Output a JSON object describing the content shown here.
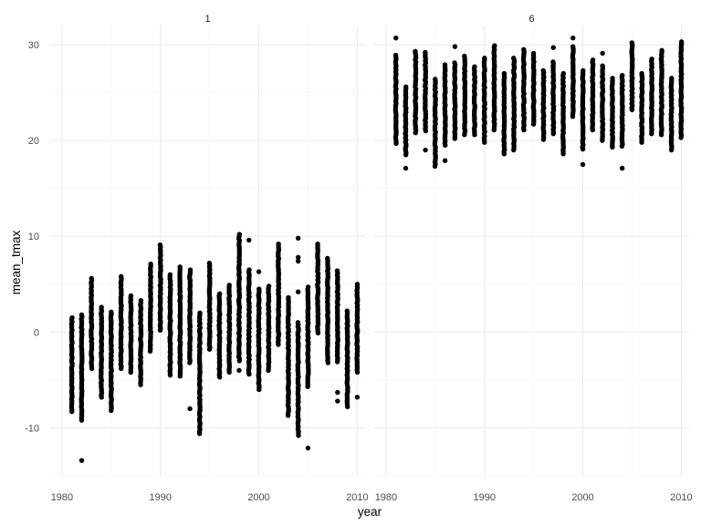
{
  "chart_data": {
    "type": "scatter",
    "facet_var": "month",
    "xlabel": "year",
    "ylabel": "mean_tmax",
    "xlim": [
      1980,
      2010
    ],
    "ylim": [
      -15,
      32
    ],
    "x_ticks": [
      1980,
      1990,
      2000,
      2010
    ],
    "x_tick_labels": [
      "1980",
      "1990",
      "2000",
      "2010"
    ],
    "y_ticks": [
      -10,
      0,
      10,
      20,
      30
    ],
    "y_tick_labels": [
      "-10",
      "0",
      "10",
      "20",
      "30"
    ],
    "grid": true,
    "legend": "none",
    "point_color": "#000000",
    "facets": [
      {
        "label": "1",
        "columns": [
          {
            "year": 1981,
            "min": -8.3,
            "max": 1.5,
            "outliers": []
          },
          {
            "year": 1982,
            "min": -9.2,
            "max": 1.8,
            "outliers": [
              -13.4
            ]
          },
          {
            "year": 1983,
            "min": -3.8,
            "max": 5.6,
            "outliers": []
          },
          {
            "year": 1984,
            "min": -6.8,
            "max": 2.6,
            "outliers": []
          },
          {
            "year": 1985,
            "min": -8.2,
            "max": 2.1,
            "outliers": []
          },
          {
            "year": 1986,
            "min": -3.8,
            "max": 5.8,
            "outliers": []
          },
          {
            "year": 1987,
            "min": -4.2,
            "max": 3.8,
            "outliers": []
          },
          {
            "year": 1988,
            "min": -5.5,
            "max": 3.3,
            "outliers": []
          },
          {
            "year": 1989,
            "min": -2.0,
            "max": 7.1,
            "outliers": []
          },
          {
            "year": 1990,
            "min": 0.2,
            "max": 9.1,
            "outliers": []
          },
          {
            "year": 1991,
            "min": -4.5,
            "max": 6.0,
            "outliers": []
          },
          {
            "year": 1992,
            "min": -4.6,
            "max": 6.8,
            "outliers": []
          },
          {
            "year": 1993,
            "min": -3.2,
            "max": 6.5,
            "outliers": [
              -8.0
            ]
          },
          {
            "year": 1994,
            "min": -10.6,
            "max": 2.0,
            "outliers": []
          },
          {
            "year": 1995,
            "min": -1.8,
            "max": 7.2,
            "outliers": []
          },
          {
            "year": 1996,
            "min": -4.7,
            "max": 4.0,
            "outliers": []
          },
          {
            "year": 1997,
            "min": -4.2,
            "max": 4.9,
            "outliers": []
          },
          {
            "year": 1998,
            "min": -3.0,
            "max": 10.2,
            "outliers": [
              -4.0
            ]
          },
          {
            "year": 1999,
            "min": -4.4,
            "max": 6.5,
            "outliers": [
              9.6
            ]
          },
          {
            "year": 2000,
            "min": -6.0,
            "max": 4.5,
            "outliers": [
              6.3
            ]
          },
          {
            "year": 2001,
            "min": -4.0,
            "max": 4.8,
            "outliers": []
          },
          {
            "year": 2002,
            "min": -1.3,
            "max": 9.2,
            "outliers": []
          },
          {
            "year": 2003,
            "min": -8.7,
            "max": 3.6,
            "outliers": []
          },
          {
            "year": 2004,
            "min": -10.8,
            "max": 1.0,
            "outliers": [
              9.8,
              7.8,
              7.4,
              4.2
            ]
          },
          {
            "year": 2005,
            "min": -5.7,
            "max": 4.7,
            "outliers": [
              -12.1
            ]
          },
          {
            "year": 2006,
            "min": -0.1,
            "max": 9.2,
            "outliers": []
          },
          {
            "year": 2007,
            "min": -3.2,
            "max": 7.7,
            "outliers": []
          },
          {
            "year": 2008,
            "min": -3.1,
            "max": 6.4,
            "outliers": [
              -6.3,
              -7.2
            ]
          },
          {
            "year": 2009,
            "min": -7.8,
            "max": 2.2,
            "outliers": []
          },
          {
            "year": 2010,
            "min": -4.2,
            "max": 5.0,
            "outliers": [
              -6.8
            ]
          }
        ]
      },
      {
        "label": "6",
        "columns": [
          {
            "year": 1981,
            "min": 19.7,
            "max": 28.9,
            "outliers": [
              30.7
            ]
          },
          {
            "year": 1982,
            "min": 18.5,
            "max": 25.6,
            "outliers": [
              17.1
            ]
          },
          {
            "year": 1983,
            "min": 20.8,
            "max": 29.3,
            "outliers": []
          },
          {
            "year": 1984,
            "min": 21.0,
            "max": 29.2,
            "outliers": [
              19.0
            ]
          },
          {
            "year": 1985,
            "min": 17.3,
            "max": 26.4,
            "outliers": []
          },
          {
            "year": 1986,
            "min": 19.5,
            "max": 27.9,
            "outliers": [
              17.9
            ]
          },
          {
            "year": 1987,
            "min": 20.2,
            "max": 28.1,
            "outliers": [
              29.8
            ]
          },
          {
            "year": 1988,
            "min": 20.6,
            "max": 28.8,
            "outliers": []
          },
          {
            "year": 1989,
            "min": 20.6,
            "max": 27.7,
            "outliers": []
          },
          {
            "year": 1990,
            "min": 19.8,
            "max": 28.6,
            "outliers": []
          },
          {
            "year": 1991,
            "min": 21.1,
            "max": 29.9,
            "outliers": []
          },
          {
            "year": 1992,
            "min": 18.6,
            "max": 27.0,
            "outliers": []
          },
          {
            "year": 1993,
            "min": 19.0,
            "max": 28.6,
            "outliers": []
          },
          {
            "year": 1994,
            "min": 21.1,
            "max": 29.5,
            "outliers": []
          },
          {
            "year": 1995,
            "min": 21.7,
            "max": 29.1,
            "outliers": []
          },
          {
            "year": 1996,
            "min": 20.1,
            "max": 27.3,
            "outliers": []
          },
          {
            "year": 1997,
            "min": 20.7,
            "max": 28.2,
            "outliers": [
              29.7
            ]
          },
          {
            "year": 1998,
            "min": 18.6,
            "max": 27.0,
            "outliers": []
          },
          {
            "year": 1999,
            "min": 22.5,
            "max": 29.8,
            "outliers": [
              30.7
            ]
          },
          {
            "year": 2000,
            "min": 19.1,
            "max": 27.3,
            "outliers": [
              17.5
            ]
          },
          {
            "year": 2001,
            "min": 21.1,
            "max": 28.4,
            "outliers": []
          },
          {
            "year": 2002,
            "min": 20.0,
            "max": 27.8,
            "outliers": [
              29.1
            ]
          },
          {
            "year": 2003,
            "min": 19.3,
            "max": 26.5,
            "outliers": []
          },
          {
            "year": 2004,
            "min": 19.4,
            "max": 26.8,
            "outliers": [
              17.1
            ]
          },
          {
            "year": 2005,
            "min": 23.2,
            "max": 30.2,
            "outliers": []
          },
          {
            "year": 2006,
            "min": 19.8,
            "max": 27.0,
            "outliers": []
          },
          {
            "year": 2007,
            "min": 20.7,
            "max": 28.5,
            "outliers": []
          },
          {
            "year": 2008,
            "min": 20.6,
            "max": 29.4,
            "outliers": []
          },
          {
            "year": 2009,
            "min": 19.0,
            "max": 26.5,
            "outliers": []
          },
          {
            "year": 2010,
            "min": 20.3,
            "max": 30.3,
            "outliers": []
          }
        ]
      }
    ]
  }
}
